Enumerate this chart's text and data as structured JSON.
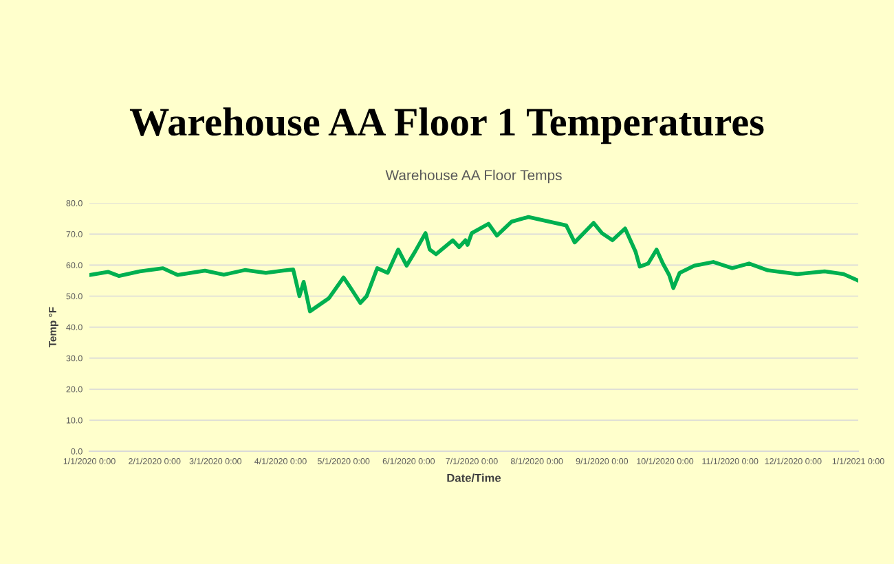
{
  "chart_data": {
    "type": "line",
    "title": "Warehouse AA Floor 1 Temperatures",
    "subtitle": "Warehouse AA Floor Temps",
    "xlabel": "Date/Time",
    "ylabel": "Temp °F",
    "x": [
      "2020-01-01",
      "2020-01-10",
      "2020-01-15",
      "2020-01-25",
      "2020-02-05",
      "2020-02-12",
      "2020-02-25",
      "2020-03-05",
      "2020-03-15",
      "2020-03-25",
      "2020-04-02",
      "2020-04-07",
      "2020-04-10",
      "2020-04-12",
      "2020-04-15",
      "2020-04-24",
      "2020-05-01",
      "2020-05-04",
      "2020-05-09",
      "2020-05-12",
      "2020-05-17",
      "2020-05-22",
      "2020-05-27",
      "2020-05-31",
      "2020-06-04",
      "2020-06-09",
      "2020-06-11",
      "2020-06-14",
      "2020-06-22",
      "2020-06-25",
      "2020-06-28",
      "2020-06-29",
      "2020-07-01",
      "2020-07-09",
      "2020-07-13",
      "2020-07-20",
      "2020-07-28",
      "2020-08-15",
      "2020-08-19",
      "2020-08-28",
      "2020-09-01",
      "2020-09-06",
      "2020-09-12",
      "2020-09-17",
      "2020-09-19",
      "2020-09-23",
      "2020-09-27",
      "2020-09-30",
      "2020-10-03",
      "2020-10-05",
      "2020-10-08",
      "2020-10-15",
      "2020-10-24",
      "2020-11-02",
      "2020-11-10",
      "2020-11-19",
      "2020-12-03",
      "2020-12-16",
      "2020-12-25",
      "2021-01-01"
    ],
    "series": [
      {
        "color": "#00b050",
        "values": [
          56.8,
          57.8,
          56.5,
          58.0,
          59.0,
          56.8,
          58.2,
          56.9,
          58.4,
          57.5,
          58.2,
          58.6,
          50.0,
          54.6,
          45.1,
          49.3,
          56.0,
          53.0,
          47.8,
          50.0,
          59.0,
          57.5,
          65.0,
          59.8,
          64.3,
          70.3,
          65.0,
          63.5,
          68.0,
          65.8,
          68.0,
          66.5,
          70.3,
          73.3,
          69.5,
          74.0,
          75.5,
          72.8,
          67.3,
          73.6,
          70.3,
          68.0,
          71.8,
          64.3,
          59.5,
          60.5,
          65.0,
          60.5,
          56.8,
          52.6,
          57.5,
          59.8,
          61.0,
          59.0,
          60.5,
          58.3,
          57.1,
          58.0,
          57.1,
          55.0
        ]
      }
    ],
    "xlim": [
      "2020-01-01",
      "2021-01-01"
    ],
    "xticks": [
      {
        "value": "2020-01-01",
        "label": "1/1/2020 0:00"
      },
      {
        "value": "2020-02-01",
        "label": "2/1/2020 0:00"
      },
      {
        "value": "2020-03-01",
        "label": "3/1/2020 0:00"
      },
      {
        "value": "2020-04-01",
        "label": "4/1/2020 0:00"
      },
      {
        "value": "2020-05-01",
        "label": "5/1/2020 0:00"
      },
      {
        "value": "2020-06-01",
        "label": "6/1/2020 0:00"
      },
      {
        "value": "2020-07-01",
        "label": "7/1/2020 0:00"
      },
      {
        "value": "2020-08-01",
        "label": "8/1/2020 0:00"
      },
      {
        "value": "2020-09-01",
        "label": "9/1/2020 0:00"
      },
      {
        "value": "2020-10-01",
        "label": "10/1/2020 0:00"
      },
      {
        "value": "2020-11-01",
        "label": "11/1/2020 0:00"
      },
      {
        "value": "2020-12-01",
        "label": "12/1/2020 0:00"
      },
      {
        "value": "2021-01-01",
        "label": "1/1/2021 0:00"
      }
    ],
    "ylim": [
      0,
      80
    ],
    "yticks": [
      {
        "value": 0,
        "label": "0.0"
      },
      {
        "value": 10,
        "label": "10.0"
      },
      {
        "value": 20,
        "label": "20.0"
      },
      {
        "value": 30,
        "label": "30.0"
      },
      {
        "value": 40,
        "label": "40.0"
      },
      {
        "value": 50,
        "label": "50.0"
      },
      {
        "value": 60,
        "label": "60.0"
      },
      {
        "value": 70,
        "label": "70.0"
      },
      {
        "value": 80,
        "label": "80.0"
      }
    ],
    "grid": "y",
    "marker": "none",
    "line_style": "solid"
  }
}
